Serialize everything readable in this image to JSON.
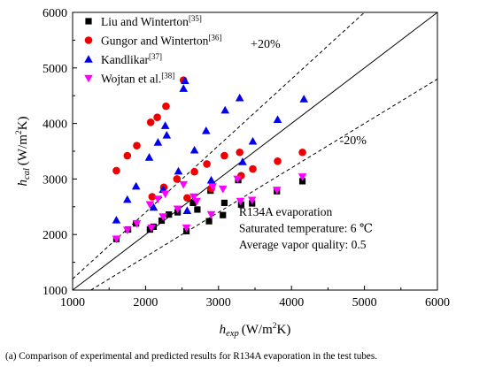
{
  "figure": {
    "caption_label": "(a)",
    "caption_text": "Comparison of experimental and predicted results for R134A evaporation in the test tubes."
  },
  "chart_data": {
    "type": "scatter",
    "title": "",
    "xlabel": {
      "symbol": "h",
      "sub": "exp",
      "unit": "(W/m",
      "sup": "2",
      "unit_end": "K)"
    },
    "ylabel": {
      "symbol": "h",
      "sub": "cal",
      "unit": "(W/m",
      "sup": "2",
      "unit_end": "K)"
    },
    "xlim": [
      1000,
      6000
    ],
    "ylim": [
      1000,
      6000
    ],
    "xticks": [
      1000,
      2000,
      3000,
      4000,
      5000,
      6000
    ],
    "yticks": [
      1000,
      2000,
      3000,
      4000,
      5000,
      6000
    ],
    "grid": false,
    "legend_position": "top-left",
    "series": [
      {
        "name": "Liu and Winterton",
        "ref": "[35]",
        "marker": "square",
        "color": "#000000",
        "points": [
          [
            1600,
            1920
          ],
          [
            1760,
            2090
          ],
          [
            1870,
            2200
          ],
          [
            2060,
            2090
          ],
          [
            2110,
            2140
          ],
          [
            2220,
            2250
          ],
          [
            2320,
            2360
          ],
          [
            2440,
            2400
          ],
          [
            2560,
            2060
          ],
          [
            2650,
            2570
          ],
          [
            2710,
            2450
          ],
          [
            2870,
            2240
          ],
          [
            2890,
            2790
          ],
          [
            3060,
            2350
          ],
          [
            3080,
            2570
          ],
          [
            3270,
            2980
          ],
          [
            3310,
            2540
          ],
          [
            3460,
            2560
          ],
          [
            3800,
            2780
          ],
          [
            4150,
            2960
          ]
        ]
      },
      {
        "name": "Gungor and Winterton",
        "ref": "[36]",
        "marker": "circle",
        "color": "#ee0000",
        "points": [
          [
            1600,
            3150
          ],
          [
            1750,
            3420
          ],
          [
            1880,
            3600
          ],
          [
            2070,
            4020
          ],
          [
            2160,
            4110
          ],
          [
            2280,
            4310
          ],
          [
            2520,
            4780
          ],
          [
            2090,
            2680
          ],
          [
            2250,
            2850
          ],
          [
            2430,
            3000
          ],
          [
            2570,
            2660
          ],
          [
            2670,
            3130
          ],
          [
            2840,
            3270
          ],
          [
            2900,
            2830
          ],
          [
            3080,
            3420
          ],
          [
            3290,
            3480
          ],
          [
            3310,
            3060
          ],
          [
            3470,
            3180
          ],
          [
            3810,
            3320
          ],
          [
            4150,
            3480
          ]
        ]
      },
      {
        "name": "Kandlikar",
        "ref": "[37]",
        "marker": "triangle-up",
        "color": "#0000ee",
        "points": [
          [
            1600,
            2260
          ],
          [
            1750,
            2630
          ],
          [
            1870,
            2870
          ],
          [
            2050,
            3390
          ],
          [
            2170,
            3660
          ],
          [
            2270,
            3960
          ],
          [
            2290,
            3790
          ],
          [
            2450,
            3140
          ],
          [
            2520,
            4630
          ],
          [
            2540,
            4770
          ],
          [
            2110,
            2490
          ],
          [
            2240,
            2810
          ],
          [
            2570,
            2430
          ],
          [
            2670,
            3520
          ],
          [
            2830,
            3870
          ],
          [
            2900,
            2980
          ],
          [
            3090,
            4240
          ],
          [
            3290,
            4460
          ],
          [
            3330,
            3310
          ],
          [
            3470,
            3680
          ],
          [
            3810,
            4070
          ],
          [
            4170,
            4440
          ]
        ]
      },
      {
        "name": "Wojtan et al.",
        "ref": "[38]",
        "marker": "triangle-down",
        "color": "#ff00ff",
        "points": [
          [
            1600,
            1920
          ],
          [
            1750,
            2080
          ],
          [
            1880,
            2200
          ],
          [
            2060,
            2540
          ],
          [
            2080,
            2120
          ],
          [
            2170,
            2640
          ],
          [
            2240,
            2320
          ],
          [
            2270,
            2730
          ],
          [
            2440,
            2460
          ],
          [
            2520,
            2900
          ],
          [
            2560,
            2120
          ],
          [
            2660,
            2680
          ],
          [
            2700,
            2600
          ],
          [
            2900,
            2360
          ],
          [
            2920,
            2860
          ],
          [
            3060,
            2820
          ],
          [
            3260,
            3000
          ],
          [
            3300,
            2600
          ],
          [
            3460,
            2620
          ],
          [
            3800,
            2800
          ],
          [
            4150,
            3040
          ]
        ]
      }
    ],
    "reference_lines": [
      {
        "kind": "y=x",
        "style": "solid"
      },
      {
        "kind": "+20%",
        "factor": 1.2,
        "style": "dashed",
        "label": "+20%"
      },
      {
        "kind": "-20%",
        "factor": 0.8,
        "style": "dashed",
        "label": "-20%"
      }
    ],
    "annotations": [
      "R134A evaporation",
      "Saturated temperature: 6 ℃",
      "Average vapor quality: 0.5"
    ]
  }
}
